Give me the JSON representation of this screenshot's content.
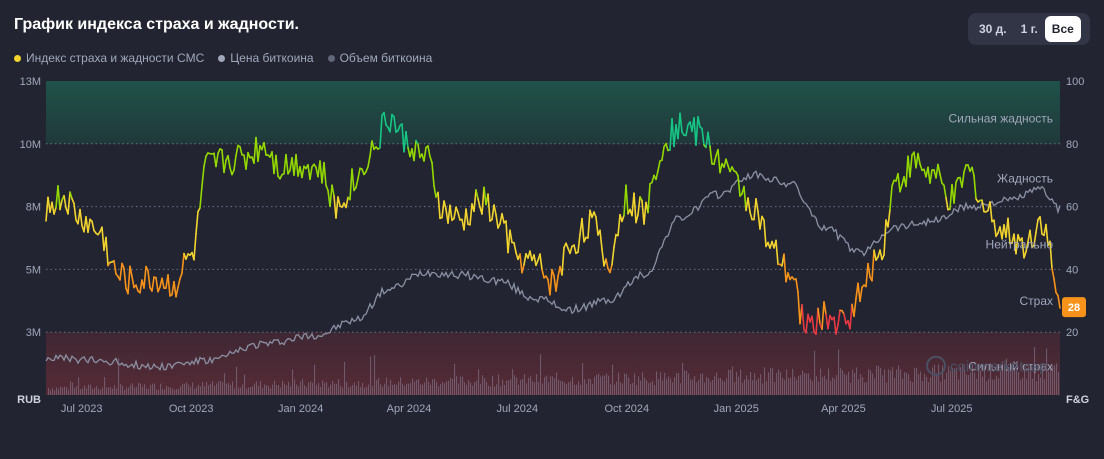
{
  "title": "График индекса страха и жадности.",
  "range_tabs": [
    {
      "label": "30 д.",
      "active": false
    },
    {
      "label": "1 г.",
      "active": false
    },
    {
      "label": "Все",
      "active": true
    }
  ],
  "legend": [
    {
      "label": "Индекс страха и жадности CMC",
      "color": "#f3d42f"
    },
    {
      "label": "Цена биткоина",
      "color": "#a1a7bb"
    },
    {
      "label": "Объем биткоина",
      "color": "#616679"
    }
  ],
  "watermark": "coinmarketcap",
  "chart_data": {
    "type": "line",
    "x_range": [
      "2023-06-01",
      "2025-09-30"
    ],
    "x_ticks": [
      "Jul 2023",
      "Oct 2023",
      "Jan 2024",
      "Apr 2024",
      "Jul 2024",
      "Oct 2024",
      "Jan 2025",
      "Apr 2025",
      "Jul 2025"
    ],
    "y_left": {
      "unit_label": "RUB",
      "ticks": [
        "3M",
        "5M",
        "8M",
        "10M",
        "13M"
      ]
    },
    "y_right": {
      "unit_label": "F&G",
      "ticks": [
        20,
        40,
        60,
        80,
        100
      ],
      "range": [
        0,
        100
      ]
    },
    "zones": [
      {
        "label": "Сильная жадность",
        "from": 80,
        "to": 100,
        "color": "#16c784"
      },
      {
        "label": "Жадность",
        "from": 60,
        "to": 80
      },
      {
        "label": "Нейтрально",
        "from": 40,
        "to": 60
      },
      {
        "label": "Страх",
        "from": 20,
        "to": 40
      },
      {
        "label": "Сильный страх",
        "from": 0,
        "to": 20,
        "color": "#ea3943"
      }
    ],
    "current_value": 28,
    "current_color": "#f7931a",
    "series": [
      {
        "name": "Индекс страха и жадности CMC",
        "axis": "right",
        "x": [
          "2023-06-01",
          "2023-06-15",
          "2023-07-01",
          "2023-07-15",
          "2023-08-01",
          "2023-08-15",
          "2023-09-01",
          "2023-09-15",
          "2023-10-01",
          "2023-10-15",
          "2023-11-01",
          "2023-11-15",
          "2023-12-01",
          "2023-12-15",
          "2024-01-01",
          "2024-01-15",
          "2024-02-01",
          "2024-02-15",
          "2024-03-01",
          "2024-03-15",
          "2024-04-01",
          "2024-04-15",
          "2024-05-01",
          "2024-05-15",
          "2024-06-01",
          "2024-06-15",
          "2024-07-01",
          "2024-07-15",
          "2024-08-01",
          "2024-08-15",
          "2024-09-01",
          "2024-09-15",
          "2024-10-01",
          "2024-10-15",
          "2024-11-01",
          "2024-11-15",
          "2024-12-01",
          "2024-12-15",
          "2025-01-01",
          "2025-01-15",
          "2025-02-01",
          "2025-02-15",
          "2025-03-01",
          "2025-03-15",
          "2025-04-01",
          "2025-04-15",
          "2025-05-01",
          "2025-05-15",
          "2025-06-01",
          "2025-06-15",
          "2025-07-01",
          "2025-07-15",
          "2025-08-01",
          "2025-08-15",
          "2025-09-01",
          "2025-09-15",
          "2025-09-30"
        ],
        "y": [
          60,
          63,
          56,
          52,
          38,
          36,
          37,
          35,
          44,
          73,
          75,
          76,
          80,
          73,
          74,
          72,
          60,
          68,
          78,
          88,
          80,
          75,
          58,
          55,
          62,
          56,
          44,
          42,
          36,
          48,
          55,
          42,
          62,
          58,
          80,
          86,
          84,
          76,
          68,
          60,
          45,
          38,
          22,
          25,
          23,
          32,
          45,
          68,
          74,
          70,
          62,
          71,
          58,
          52,
          48,
          56,
          28
        ]
      },
      {
        "name": "Цена биткоина",
        "axis": "left",
        "x": [
          "2023-06-01",
          "2023-07-15",
          "2023-09-01",
          "2023-10-15",
          "2023-12-01",
          "2024-01-15",
          "2024-02-15",
          "2024-03-15",
          "2024-04-15",
          "2024-05-15",
          "2024-06-15",
          "2024-07-15",
          "2024-08-15",
          "2024-09-15",
          "2024-10-15",
          "2024-11-15",
          "2024-12-15",
          "2025-01-15",
          "2025-02-15",
          "2025-03-15",
          "2025-04-15",
          "2025-05-15",
          "2025-06-15",
          "2025-07-15",
          "2025-08-15",
          "2025-09-15",
          "2025-09-30"
        ],
        "y": [
          3.3,
          3.2,
          3.0,
          3.2,
          3.8,
          4.1,
          4.6,
          5.7,
          6.3,
          6.2,
          6.0,
          5.4,
          5.0,
          5.3,
          6.2,
          8.2,
          9.0,
          9.7,
          9.4,
          7.9,
          7.0,
          7.9,
          8.1,
          8.6,
          8.8,
          9.2,
          8.5
        ]
      },
      {
        "name": "Объем биткоина",
        "type": "bar",
        "note": "relative daily volume bars along the bottom"
      }
    ]
  }
}
